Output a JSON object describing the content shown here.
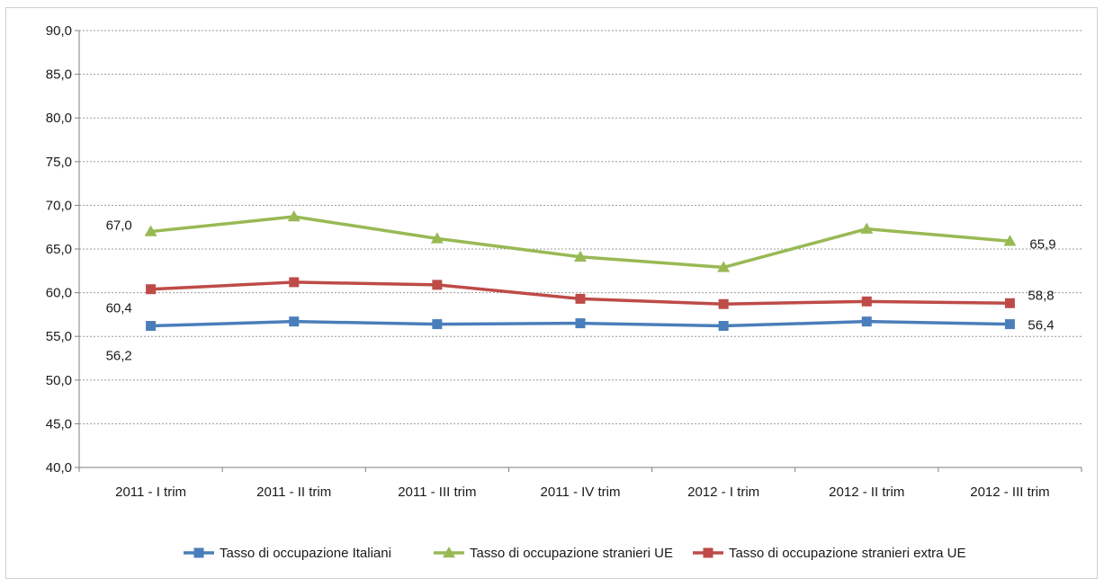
{
  "chart_data": {
    "type": "line",
    "title": "",
    "xlabel": "",
    "ylabel": "",
    "categories": [
      "2011 - I trim",
      "2011 - II trim",
      "2011 - III trim",
      "2011 - IV trim",
      "2012 - I trim",
      "2012 - II trim",
      "2012 - III trim"
    ],
    "ylim": [
      40,
      90
    ],
    "yticks": [
      "40,0",
      "45,0",
      "50,0",
      "55,0",
      "60,0",
      "65,0",
      "70,0",
      "75,0",
      "80,0",
      "85,0",
      "90,0"
    ],
    "grid": true,
    "legend_position": "bottom",
    "series": [
      {
        "name": "Tasso di occupazione Italiani",
        "color": "#4a7ebb",
        "marker": "square",
        "values": [
          56.2,
          56.7,
          56.4,
          56.5,
          56.2,
          56.7,
          56.4
        ]
      },
      {
        "name": "Tasso di occupazione stranieri UE",
        "color": "#98b954",
        "marker": "triangle",
        "values": [
          67.0,
          68.7,
          66.2,
          64.1,
          62.9,
          67.3,
          65.9
        ]
      },
      {
        "name": "Tasso di occupazione stranieri extra UE",
        "color": "#be4b48",
        "marker": "square",
        "values": [
          60.4,
          61.2,
          60.9,
          59.3,
          58.7,
          59.0,
          58.8
        ]
      }
    ],
    "data_labels": [
      {
        "series": 1,
        "index": 0,
        "text": "67,0"
      },
      {
        "series": 2,
        "index": 0,
        "text": "60,4"
      },
      {
        "series": 0,
        "index": 0,
        "text": "56,2"
      },
      {
        "series": 1,
        "index": 6,
        "text": "65,9"
      },
      {
        "series": 2,
        "index": 6,
        "text": "58,8"
      },
      {
        "series": 0,
        "index": 6,
        "text": "56,4"
      }
    ]
  }
}
